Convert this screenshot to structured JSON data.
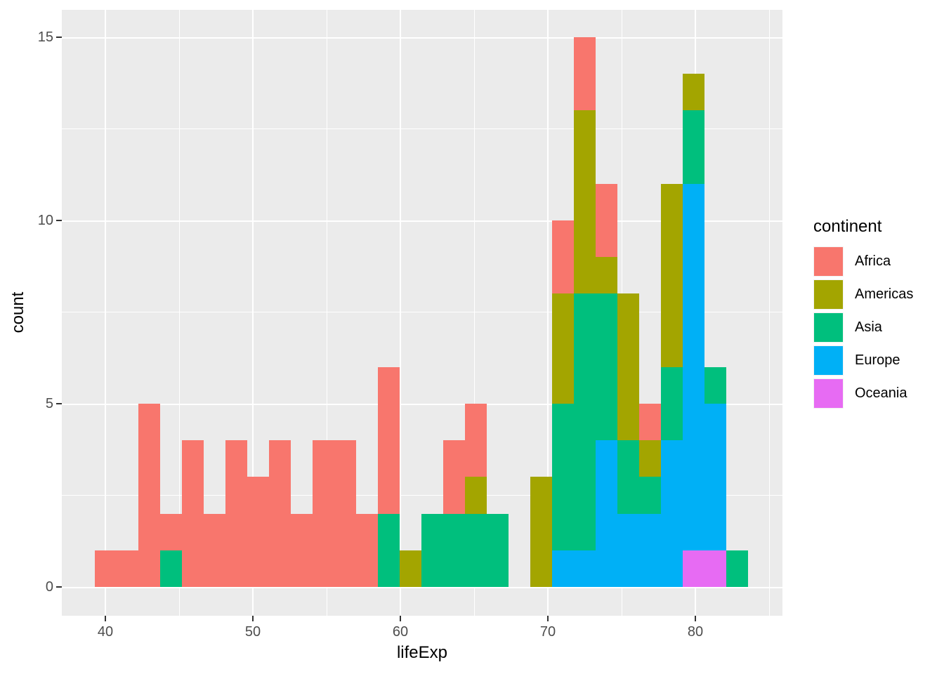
{
  "figure": {
    "kind": "ggplot2 stacked histogram",
    "background": "#FFFFFF",
    "panel_background": "#EBEBEB",
    "gridline_color": "#FFFFFF",
    "tick_mark_color": "#333333",
    "tick_label_color": "#4D4D4D",
    "axis_title_color": "#000000"
  },
  "axes": {
    "x": {
      "title": "lifeExp",
      "tick_values": [
        40,
        50,
        60,
        70,
        80
      ],
      "tick_labels": [
        "40",
        "50",
        "60",
        "70",
        "80"
      ],
      "minor_tick_values": [
        45,
        55,
        65,
        75,
        85
      ]
    },
    "y": {
      "title": "count",
      "tick_values": [
        0,
        5,
        10,
        15
      ],
      "tick_labels": [
        "0",
        "5",
        "10",
        "15"
      ],
      "minor_tick_values": [
        2.5,
        7.5,
        12.5
      ]
    }
  },
  "legend": {
    "title": "continent"
  },
  "chart_data": {
    "type": "bar",
    "subtype": "stacked_histogram",
    "title": "",
    "xlabel": "lifeExp",
    "ylabel": "count",
    "xlim": [
      37.05,
      85.95
    ],
    "ylim": [
      -0.75,
      15.75
    ],
    "grid": "on",
    "legend_position": "right",
    "bin_width": 1.476,
    "bin_starts": [
      39.29,
      40.76,
      42.24,
      43.71,
      45.19,
      46.67,
      48.14,
      49.62,
      51.1,
      52.57,
      54.05,
      55.52,
      57.0,
      58.48,
      59.95,
      61.43,
      62.9,
      64.38,
      65.86,
      67.33,
      68.81,
      70.29,
      71.76,
      73.24,
      74.71,
      76.19,
      77.67,
      79.14,
      80.62,
      82.1
    ],
    "stack_order_bottom_to_top": [
      "Oceania",
      "Europe",
      "Asia",
      "Americas",
      "Africa"
    ],
    "series": [
      {
        "name": "Africa",
        "color": "#F8766D",
        "values": [
          1,
          1,
          5,
          1,
          4,
          2,
          4,
          3,
          4,
          2,
          4,
          4,
          2,
          4,
          0,
          0,
          2,
          2,
          0,
          0,
          0,
          2,
          2,
          2,
          0,
          1,
          0,
          0,
          0,
          0
        ]
      },
      {
        "name": "Americas",
        "color": "#A3A500",
        "values": [
          0,
          0,
          0,
          0,
          0,
          0,
          0,
          0,
          0,
          0,
          0,
          0,
          0,
          0,
          1,
          0,
          0,
          1,
          0,
          0,
          3,
          3,
          5,
          1,
          4,
          1,
          5,
          1,
          0,
          0
        ]
      },
      {
        "name": "Asia",
        "color": "#00BF7D",
        "values": [
          0,
          0,
          0,
          1,
          0,
          0,
          0,
          0,
          0,
          0,
          0,
          0,
          0,
          2,
          0,
          2,
          2,
          2,
          2,
          0,
          0,
          4,
          7,
          4,
          2,
          1,
          2,
          2,
          1,
          1
        ]
      },
      {
        "name": "Europe",
        "color": "#00B0F6",
        "values": [
          0,
          0,
          0,
          0,
          0,
          0,
          0,
          0,
          0,
          0,
          0,
          0,
          0,
          0,
          0,
          0,
          0,
          0,
          0,
          0,
          0,
          1,
          1,
          4,
          2,
          2,
          4,
          10,
          4,
          0
        ]
      },
      {
        "name": "Oceania",
        "color": "#E76BF3",
        "values": [
          0,
          0,
          0,
          0,
          0,
          0,
          0,
          0,
          0,
          0,
          0,
          0,
          0,
          0,
          0,
          0,
          0,
          0,
          0,
          0,
          0,
          0,
          0,
          0,
          0,
          0,
          0,
          1,
          1,
          0
        ]
      }
    ],
    "totals_per_series": {
      "Africa": 52,
      "Americas": 25,
      "Asia": 35,
      "Europe": 28,
      "Oceania": 2
    }
  }
}
